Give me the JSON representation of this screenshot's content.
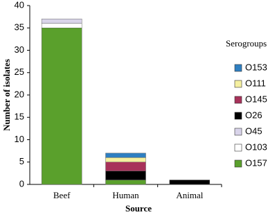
{
  "chart_data": {
    "type": "stacked_bar",
    "x_label": "Source",
    "y_label": "Number of isolates",
    "categories": [
      "Beef",
      "Human",
      "Animal"
    ],
    "series": [
      {
        "name": "O157",
        "color": "#5aa02c",
        "values": [
          35,
          1,
          0
        ]
      },
      {
        "name": "O103",
        "color": "#ffffff",
        "values": [
          1,
          0,
          0
        ]
      },
      {
        "name": "O45",
        "color": "#d9d4ea",
        "values": [
          1,
          0,
          0
        ]
      },
      {
        "name": "O26",
        "color": "#000000",
        "values": [
          0,
          2,
          1
        ]
      },
      {
        "name": "O145",
        "color": "#a8325a",
        "values": [
          0,
          2,
          0
        ]
      },
      {
        "name": "O111",
        "color": "#f5f0a0",
        "values": [
          0,
          1,
          0
        ]
      },
      {
        "name": "O153",
        "color": "#2f7fc1",
        "values": [
          0,
          1,
          0
        ]
      }
    ],
    "ylim": [
      0,
      40
    ],
    "yticks": [
      0,
      5,
      10,
      15,
      20,
      25,
      30,
      35,
      40
    ],
    "legend_title": "Serogroups",
    "legend_position": "right"
  }
}
